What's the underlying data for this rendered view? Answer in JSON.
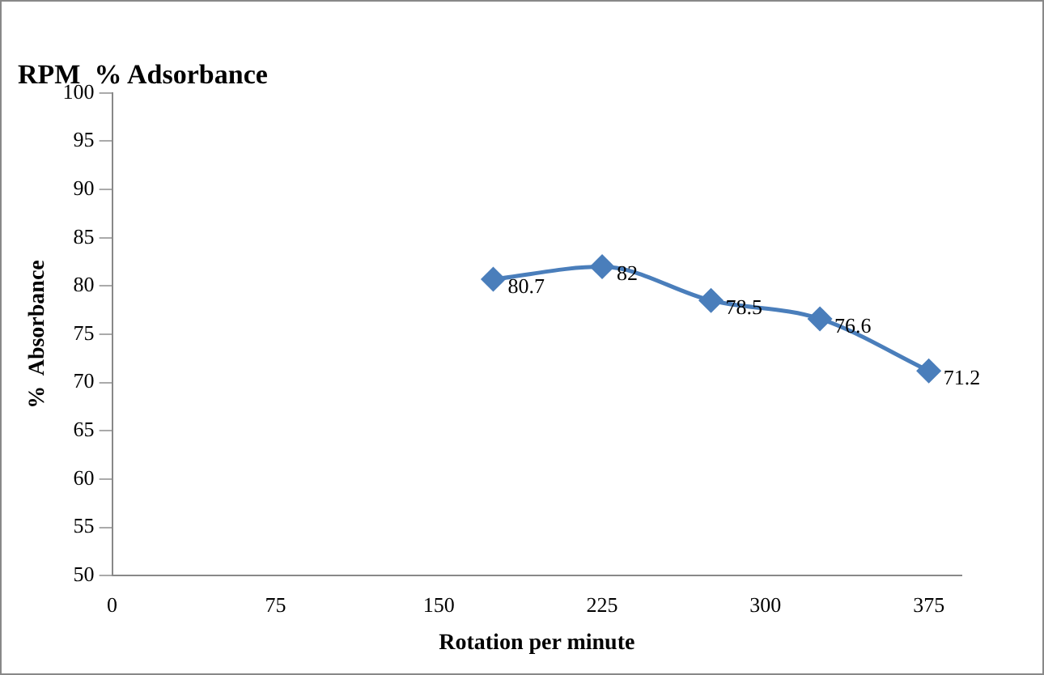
{
  "chart_data": {
    "type": "line",
    "title": "RPM  % Adsorbance",
    "xlabel": "Rotation per minute",
    "ylabel": "%  Absorbance",
    "x": [
      175,
      225,
      275,
      325,
      375
    ],
    "series": [
      {
        "color": "#4a7ebb",
        "values": [
          80.7,
          82,
          78.5,
          76.6,
          71.2
        ]
      }
    ],
    "xlim": [
      0,
      390
    ],
    "xticks": [
      0,
      75,
      150,
      225,
      300,
      375
    ],
    "ylim": [
      50,
      100
    ],
    "yticks": [
      50,
      55,
      60,
      65,
      70,
      75,
      80,
      85,
      90,
      95,
      100
    ],
    "grid": false,
    "legend": false,
    "marker": "diamond",
    "line_style": "solid",
    "data_labels": true
  }
}
